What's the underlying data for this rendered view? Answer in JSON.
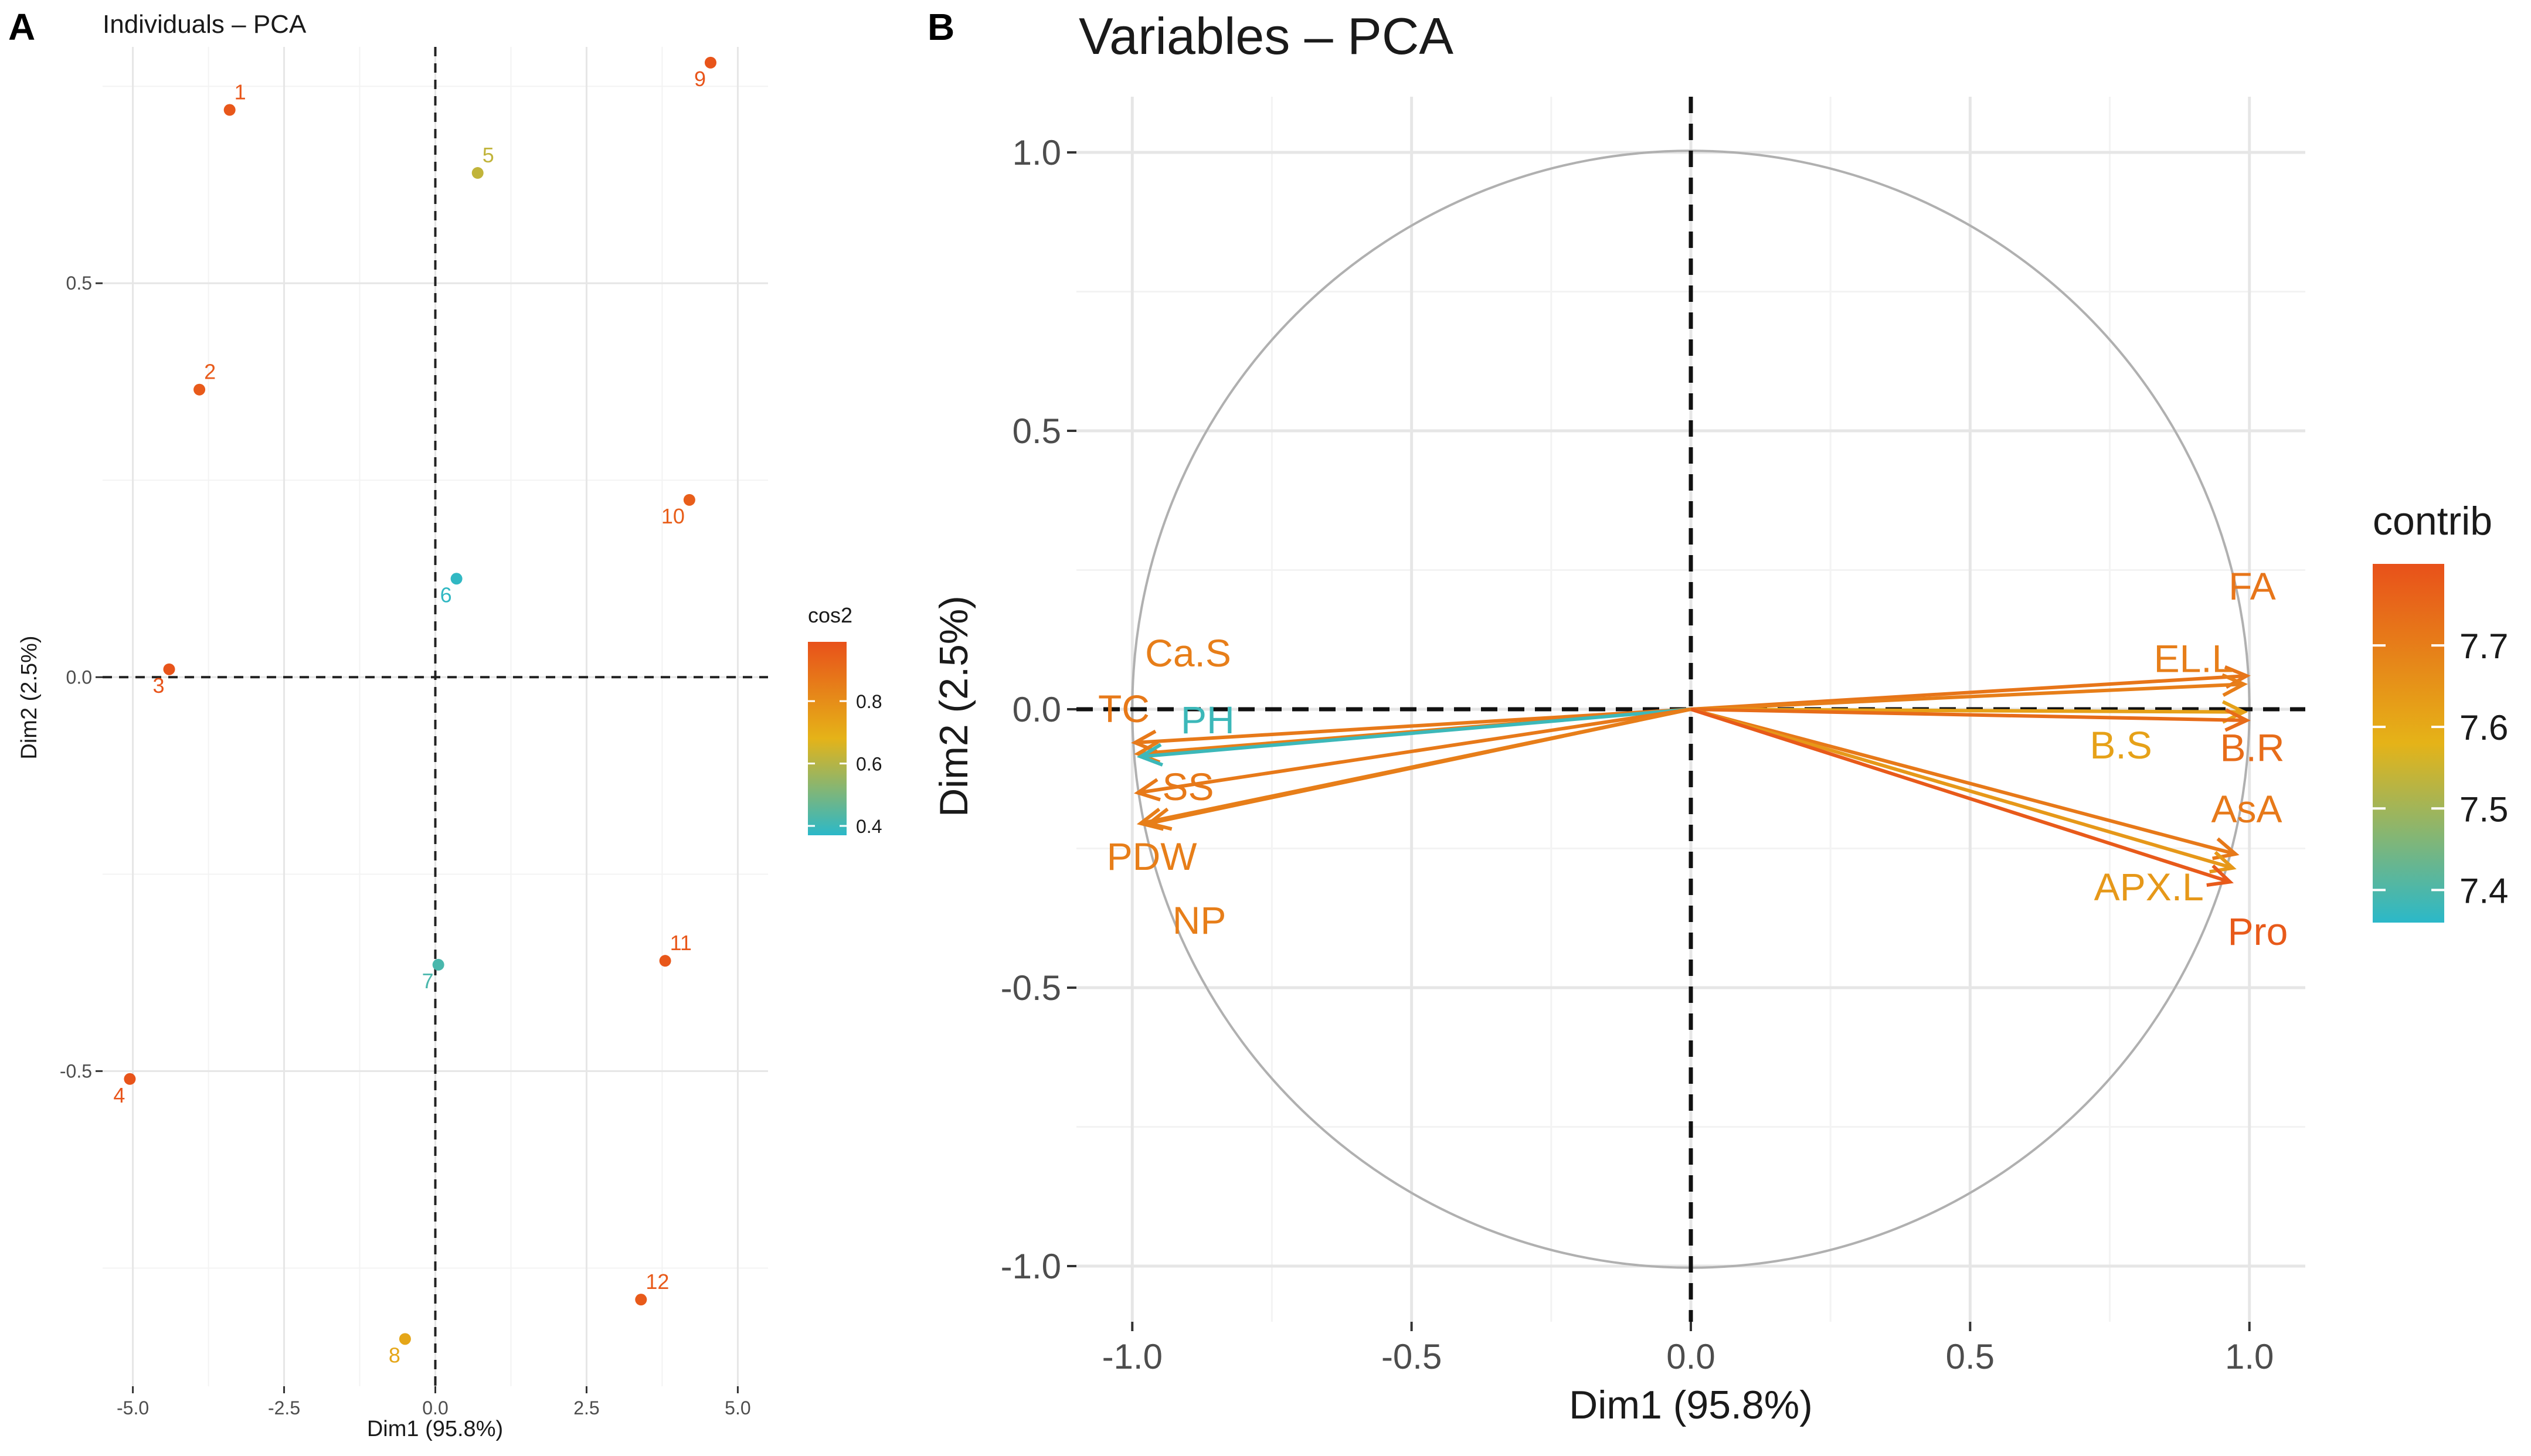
{
  "figure": {
    "panel_a_letter": "A",
    "panel_b_letter": "B"
  },
  "chart_data": [
    {
      "type": "scatter",
      "title": "Individuals – PCA",
      "xlabel": "Dim1 (95.8%)",
      "ylabel": "Dim2 (2.5%)",
      "xlim": [
        -5.5,
        5.5
      ],
      "ylim": [
        -0.9,
        0.8
      ],
      "xticks": [
        -5.0,
        -2.5,
        0.0,
        2.5,
        5.0
      ],
      "xtick_labels": [
        "-5.0",
        "-2.5",
        "0.0",
        "2.5",
        "5.0"
      ],
      "yticks": [
        0.5,
        0.0,
        -0.5
      ],
      "ytick_labels": [
        "0.5",
        "0.0",
        "-0.5"
      ],
      "grid": true,
      "legend": {
        "title": "cos2",
        "position": "right",
        "ticks": [
          0.8,
          0.6,
          0.4
        ],
        "tick_labels": [
          "0.8",
          "0.6",
          "0.4"
        ],
        "range": [
          0.37,
          0.99
        ]
      },
      "colors": {
        "high": "#e8511a",
        "mid": "#e5b318",
        "low": "#2bb8c9"
      },
      "points": [
        {
          "label": "1",
          "x": -3.4,
          "y": 0.72,
          "cos2": 0.97,
          "label_pos": "right-top"
        },
        {
          "label": "2",
          "x": -3.9,
          "y": 0.365,
          "cos2": 0.96,
          "label_pos": "right-top"
        },
        {
          "label": "3",
          "x": -4.4,
          "y": 0.01,
          "cos2": 0.98,
          "label_pos": "left-bottom"
        },
        {
          "label": "4",
          "x": -5.05,
          "y": -0.51,
          "cos2": 0.98,
          "label_pos": "left-bottom"
        },
        {
          "label": "5",
          "x": 0.7,
          "y": 0.64,
          "cos2": 0.62,
          "label_pos": "right-top"
        },
        {
          "label": "6",
          "x": 0.35,
          "y": 0.125,
          "cos2": 0.38,
          "label_pos": "left-bottom"
        },
        {
          "label": "7",
          "x": 0.05,
          "y": -0.365,
          "cos2": 0.42,
          "label_pos": "left-bottom"
        },
        {
          "label": "8",
          "x": -0.5,
          "y": -0.84,
          "cos2": 0.72,
          "label_pos": "left-bottom"
        },
        {
          "label": "9",
          "x": 4.55,
          "y": 0.78,
          "cos2": 0.98,
          "label_pos": "left-bottom"
        },
        {
          "label": "10",
          "x": 4.2,
          "y": 0.225,
          "cos2": 0.95,
          "label_pos": "left-bottom"
        },
        {
          "label": "11",
          "x": 3.8,
          "y": -0.36,
          "cos2": 0.97,
          "label_pos": "right-top"
        },
        {
          "label": "12",
          "x": 3.4,
          "y": -0.79,
          "cos2": 0.96,
          "label_pos": "right-top"
        }
      ]
    },
    {
      "type": "vector",
      "title": "Variables – PCA",
      "xlabel": "Dim1 (95.8%)",
      "ylabel": "Dim2 (2.5%)",
      "xlim": [
        -1.1,
        1.1
      ],
      "ylim": [
        -1.1,
        1.1
      ],
      "xticks": [
        -1.0,
        -0.5,
        0.0,
        0.5,
        1.0
      ],
      "xtick_labels": [
        "-1.0",
        "-0.5",
        "0.0",
        "0.5",
        "1.0"
      ],
      "yticks": [
        1.0,
        0.5,
        0.0,
        -0.5,
        -1.0
      ],
      "ytick_labels": [
        "1.0",
        "0.5",
        "0.0",
        "-0.5",
        "-1.0"
      ],
      "grid": true,
      "unit_circle": true,
      "legend": {
        "title": "contrib",
        "position": "right",
        "ticks": [
          7.7,
          7.6,
          7.5,
          7.4
        ],
        "tick_labels": [
          "7.7",
          "7.6",
          "7.5",
          "7.4"
        ],
        "range": [
          7.36,
          7.8
        ]
      },
      "variables": [
        {
          "name": "FA",
          "x": 0.995,
          "y": 0.06,
          "contrib": 7.72,
          "label_dx": 0.01,
          "label_dy": 0.16,
          "anchor": "middle"
        },
        {
          "name": "EL.L",
          "x": 0.99,
          "y": 0.045,
          "contrib": 7.7,
          "label_dx": -0.09,
          "label_dy": 0.045,
          "anchor": "middle"
        },
        {
          "name": "B.S",
          "x": 0.99,
          "y": -0.005,
          "contrib": 7.62,
          "label_dx": -0.22,
          "label_dy": -0.06,
          "anchor": "middle"
        },
        {
          "name": "B.R",
          "x": 0.995,
          "y": -0.02,
          "contrib": 7.74,
          "label_dx": 0.01,
          "label_dy": -0.05,
          "anchor": "middle"
        },
        {
          "name": "AsA",
          "x": 0.975,
          "y": -0.26,
          "contrib": 7.71,
          "label_dx": 0.02,
          "label_dy": 0.08,
          "anchor": "middle"
        },
        {
          "name": "APX.L",
          "x": 0.97,
          "y": -0.285,
          "contrib": 7.64,
          "label_dx": -0.15,
          "label_dy": -0.035,
          "anchor": "middle"
        },
        {
          "name": "Pro",
          "x": 0.965,
          "y": -0.31,
          "contrib": 7.78,
          "label_dx": 0.05,
          "label_dy": -0.09,
          "anchor": "middle"
        },
        {
          "name": "Ca.S",
          "x": -0.99,
          "y": -0.08,
          "contrib": 7.7,
          "label_dx": 0.09,
          "label_dy": 0.18,
          "anchor": "middle"
        },
        {
          "name": "TC",
          "x": -0.995,
          "y": -0.06,
          "contrib": 7.71,
          "label_dx": -0.02,
          "label_dy": 0.06,
          "anchor": "middle"
        },
        {
          "name": "PH",
          "x": -0.985,
          "y": -0.085,
          "contrib": 7.38,
          "label_dx": 0.12,
          "label_dy": 0.065,
          "anchor": "middle"
        },
        {
          "name": "SS",
          "x": -0.99,
          "y": -0.15,
          "contrib": 7.71,
          "label_dx": 0.09,
          "label_dy": 0.01,
          "anchor": "middle"
        },
        {
          "name": "PDW",
          "x": -0.985,
          "y": -0.205,
          "contrib": 7.7,
          "label_dx": 0.02,
          "label_dy": -0.06,
          "anchor": "middle"
        },
        {
          "name": "NP",
          "x": -0.97,
          "y": -0.205,
          "contrib": 7.7,
          "label_dx": 0.09,
          "label_dy": -0.175,
          "anchor": "middle"
        }
      ]
    }
  ]
}
